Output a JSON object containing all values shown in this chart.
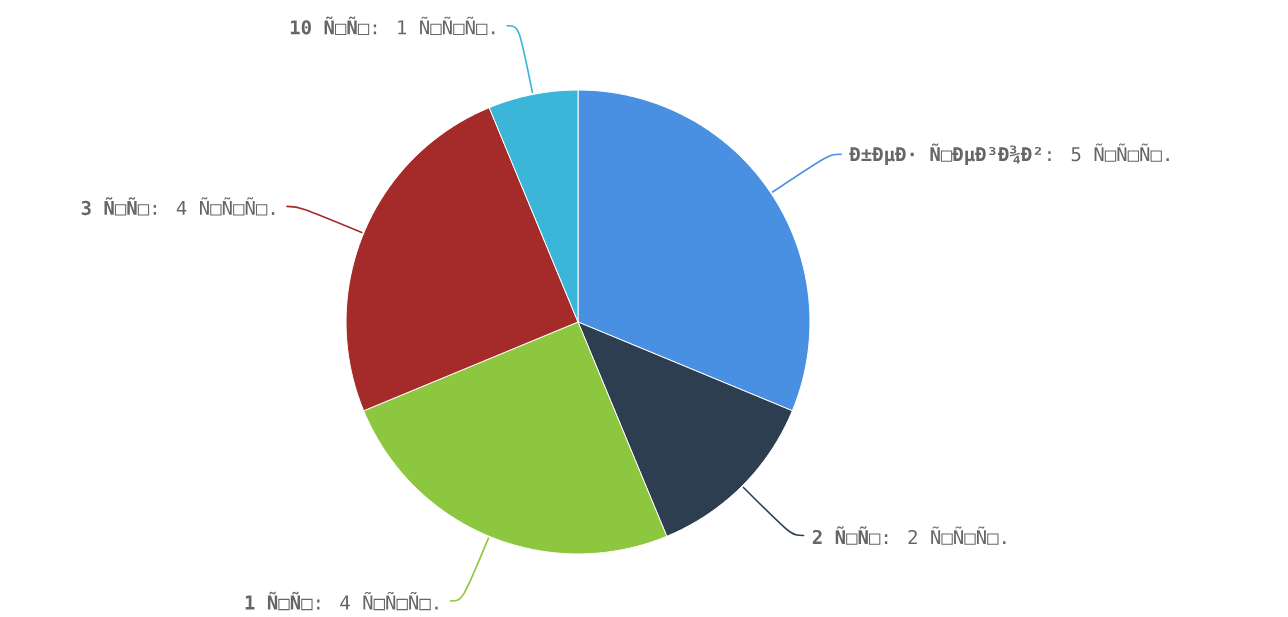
{
  "chart_data": {
    "type": "pie",
    "categories": [
      "Ð±ÐµÐ· Ñ□ÐµÐ³Ð¾Ð²",
      "2 Ñ□Ñ□",
      "1 Ñ□Ñ□",
      "3 Ñ□Ñ□",
      "10 Ñ□Ñ□"
    ],
    "values": [
      5,
      2,
      4,
      4,
      1
    ],
    "value_labels": [
      ": 5 Ñ□Ñ□Ñ□.",
      ": 2 Ñ□Ñ□Ñ□.",
      ": 4 Ñ□Ñ□Ñ□.",
      ": 4 Ñ□Ñ□Ñ□.",
      ": 1 Ñ□Ñ□Ñ□."
    ],
    "colors": [
      "#4a90e2",
      "#2c3e50",
      "#8dc63f",
      "#a52a2a",
      "#3bb5d8"
    ]
  }
}
